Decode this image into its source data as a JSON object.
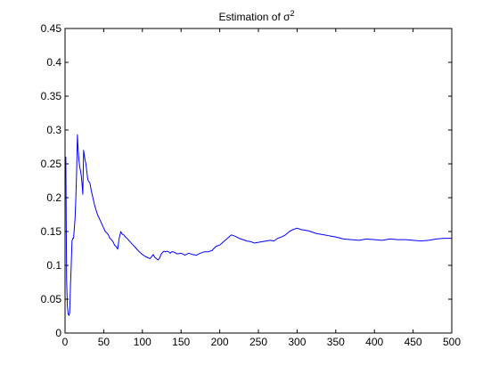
{
  "chart_data": {
    "type": "line",
    "title": {
      "prefix": "Estimation of ",
      "symbol": "σ",
      "superscript": "2"
    },
    "xlabel": "",
    "ylabel": "",
    "xlim": [
      0,
      500
    ],
    "ylim": [
      0,
      0.45
    ],
    "xticks": [
      0,
      50,
      100,
      150,
      200,
      250,
      300,
      350,
      400,
      450,
      500
    ],
    "yticks": [
      0,
      0.05,
      0.1,
      0.15,
      0.2,
      0.25,
      0.3,
      0.35,
      0.4,
      0.45
    ],
    "xtick_labels": [
      "0",
      "50",
      "100",
      "150",
      "200",
      "250",
      "300",
      "350",
      "400",
      "450",
      "500"
    ],
    "ytick_labels": [
      "0",
      "0.05",
      "0.1",
      "0.15",
      "0.2",
      "0.25",
      "0.3",
      "0.35",
      "0.4",
      "0.45"
    ],
    "grid": false,
    "series": [
      {
        "color": "#0000ff",
        "x": [
          1,
          2,
          3,
          4,
          5,
          6,
          7,
          8,
          9,
          10,
          11,
          12,
          13,
          14,
          15,
          16,
          17,
          18,
          19,
          20,
          21,
          22,
          23,
          24,
          25,
          26,
          27,
          28,
          29,
          30,
          32,
          34,
          36,
          38,
          40,
          42,
          44,
          46,
          48,
          50,
          52,
          54,
          56,
          58,
          60,
          62,
          64,
          66,
          68,
          70,
          72,
          74,
          76,
          78,
          80,
          84,
          88,
          92,
          96,
          100,
          104,
          108,
          110,
          112,
          114,
          116,
          118,
          120,
          122,
          124,
          126,
          128,
          130,
          132,
          134,
          136,
          138,
          140,
          145,
          150,
          155,
          160,
          165,
          170,
          175,
          180,
          185,
          190,
          195,
          200,
          205,
          210,
          215,
          220,
          225,
          230,
          235,
          240,
          245,
          250,
          255,
          260,
          265,
          270,
          275,
          280,
          285,
          290,
          295,
          300,
          305,
          310,
          315,
          320,
          325,
          330,
          335,
          340,
          345,
          350,
          360,
          370,
          380,
          390,
          400,
          410,
          420,
          430,
          440,
          450,
          460,
          470,
          480,
          490,
          500
        ],
        "values": [
          0.26,
          0.08,
          0.04,
          0.028,
          0.026,
          0.03,
          0.07,
          0.1,
          0.136,
          0.14,
          0.14,
          0.155,
          0.17,
          0.2,
          0.24,
          0.293,
          0.27,
          0.255,
          0.245,
          0.24,
          0.232,
          0.22,
          0.205,
          0.27,
          0.262,
          0.255,
          0.25,
          0.24,
          0.23,
          0.225,
          0.222,
          0.21,
          0.2,
          0.19,
          0.182,
          0.175,
          0.17,
          0.165,
          0.16,
          0.155,
          0.15,
          0.148,
          0.145,
          0.14,
          0.138,
          0.135,
          0.13,
          0.128,
          0.124,
          0.14,
          0.15,
          0.146,
          0.145,
          0.142,
          0.14,
          0.135,
          0.13,
          0.125,
          0.12,
          0.116,
          0.113,
          0.111,
          0.11,
          0.113,
          0.116,
          0.112,
          0.11,
          0.108,
          0.11,
          0.116,
          0.119,
          0.121,
          0.12,
          0.121,
          0.12,
          0.118,
          0.12,
          0.12,
          0.117,
          0.118,
          0.115,
          0.118,
          0.116,
          0.115,
          0.118,
          0.12,
          0.12,
          0.122,
          0.128,
          0.13,
          0.135,
          0.14,
          0.145,
          0.143,
          0.14,
          0.138,
          0.136,
          0.135,
          0.133,
          0.134,
          0.135,
          0.136,
          0.137,
          0.136,
          0.14,
          0.142,
          0.145,
          0.15,
          0.153,
          0.155,
          0.153,
          0.152,
          0.151,
          0.149,
          0.147,
          0.146,
          0.145,
          0.144,
          0.143,
          0.142,
          0.139,
          0.138,
          0.137,
          0.139,
          0.138,
          0.137,
          0.139,
          0.138,
          0.138,
          0.137,
          0.136,
          0.137,
          0.139,
          0.14,
          0.14
        ]
      }
    ]
  }
}
